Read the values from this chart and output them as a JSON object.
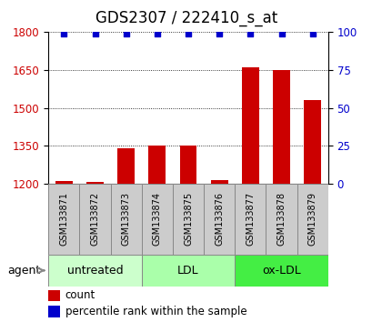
{
  "title": "GDS2307 / 222410_s_at",
  "samples": [
    "GSM133871",
    "GSM133872",
    "GSM133873",
    "GSM133874",
    "GSM133875",
    "GSM133876",
    "GSM133877",
    "GSM133878",
    "GSM133879"
  ],
  "bar_values": [
    1210,
    1205,
    1340,
    1350,
    1350,
    1215,
    1660,
    1650,
    1530
  ],
  "percentile_right": [
    99,
    99,
    99,
    99,
    99,
    99,
    99,
    99,
    99
  ],
  "bar_color": "#cc0000",
  "dot_color": "#0000cc",
  "ylim_left": [
    1200,
    1800
  ],
  "yticks_left": [
    1200,
    1350,
    1500,
    1650,
    1800
  ],
  "yticks_right": [
    0,
    25,
    50,
    75,
    100
  ],
  "ylim_right": [
    0,
    100
  ],
  "groups": [
    {
      "label": "untreated",
      "indices": [
        0,
        1,
        2
      ],
      "color": "#ccffcc"
    },
    {
      "label": "LDL",
      "indices": [
        3,
        4,
        5
      ],
      "color": "#aaffaa"
    },
    {
      "label": "ox-LDL",
      "indices": [
        6,
        7,
        8
      ],
      "color": "#44ee44"
    }
  ],
  "agent_label": "agent",
  "legend_count_label": "count",
  "legend_pct_label": "percentile rank within the sample",
  "bar_width": 0.55,
  "background_color": "#ffffff",
  "sample_box_color": "#cccccc",
  "title_fontsize": 12,
  "tick_fontsize": 8.5,
  "sample_fontsize": 7,
  "group_fontsize": 9
}
